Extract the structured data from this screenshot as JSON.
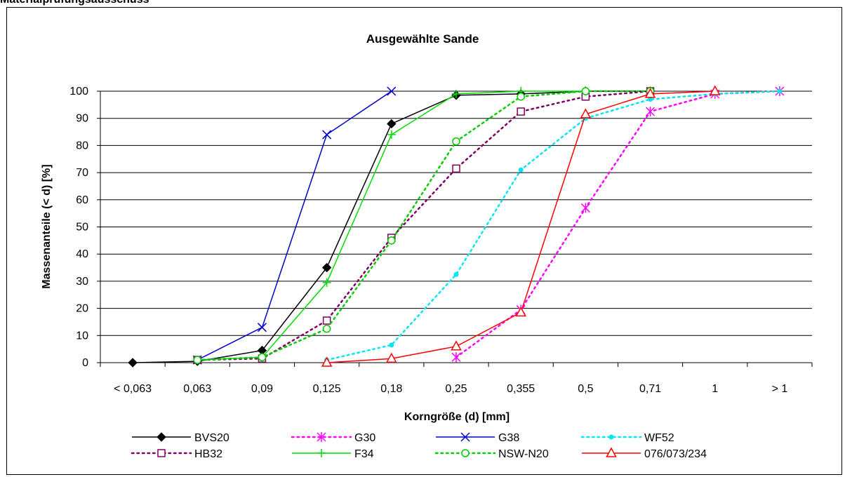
{
  "header": {
    "title": "Materialprüfungsausschuss"
  },
  "chart_data": {
    "type": "line",
    "title": "Ausgewählte Sande",
    "xlabel": "Korngröße (d) [mm]",
    "ylabel": "Massenanteile (< d)  [%]",
    "categories": [
      "< 0,063",
      "0,063",
      "0,09",
      "0,125",
      "0,18",
      "0,25",
      "0,355",
      "0,5",
      "0,71",
      "1",
      "> 1"
    ],
    "ylim": [
      0,
      100
    ],
    "yticks": [
      0,
      10,
      20,
      30,
      40,
      50,
      60,
      70,
      80,
      90,
      100
    ],
    "grid": true,
    "legend_position": "bottom",
    "series": [
      {
        "name": "BVS20",
        "color": "#000000",
        "dash": "solid",
        "marker": "diamond-filled",
        "values": [
          0,
          0.5,
          4.5,
          35,
          88,
          98.5,
          99,
          100,
          100,
          null,
          null
        ]
      },
      {
        "name": "G30",
        "color": "#ff00ff",
        "dash": "dotted",
        "marker": "asterisk",
        "values": [
          null,
          null,
          null,
          null,
          null,
          2,
          19.5,
          57,
          92.5,
          99,
          100
        ]
      },
      {
        "name": "G38",
        "color": "#0000cc",
        "dash": "solid",
        "marker": "x",
        "values": [
          null,
          1,
          13,
          84,
          100,
          null,
          null,
          null,
          null,
          null,
          null
        ]
      },
      {
        "name": "WF52",
        "color": "#00e5ee",
        "dash": "dotted",
        "marker": "dot",
        "values": [
          null,
          null,
          null,
          1,
          6.5,
          32.5,
          71,
          90,
          97,
          99,
          100
        ]
      },
      {
        "name": "HB32",
        "color": "#800060",
        "dash": "dotted",
        "marker": "square",
        "values": [
          null,
          1,
          1.5,
          15.5,
          46,
          71.5,
          92.5,
          98,
          100,
          null,
          null
        ]
      },
      {
        "name": "F34",
        "color": "#00dd00",
        "dash": "solid",
        "marker": "plus",
        "values": [
          null,
          1,
          2,
          29.5,
          84,
          99,
          100,
          100,
          null,
          null,
          null
        ]
      },
      {
        "name": "NSW-N20",
        "color": "#00cc00",
        "dash": "dotted",
        "marker": "circle",
        "values": [
          null,
          1,
          2,
          12.5,
          45,
          81.5,
          98,
          100,
          100,
          null,
          null
        ]
      },
      {
        "name": "076/073/234",
        "color": "#ff0000",
        "dash": "solid",
        "marker": "triangle",
        "values": [
          null,
          null,
          null,
          0,
          1.5,
          6,
          18.5,
          91.5,
          99,
          100,
          null
        ]
      }
    ]
  }
}
